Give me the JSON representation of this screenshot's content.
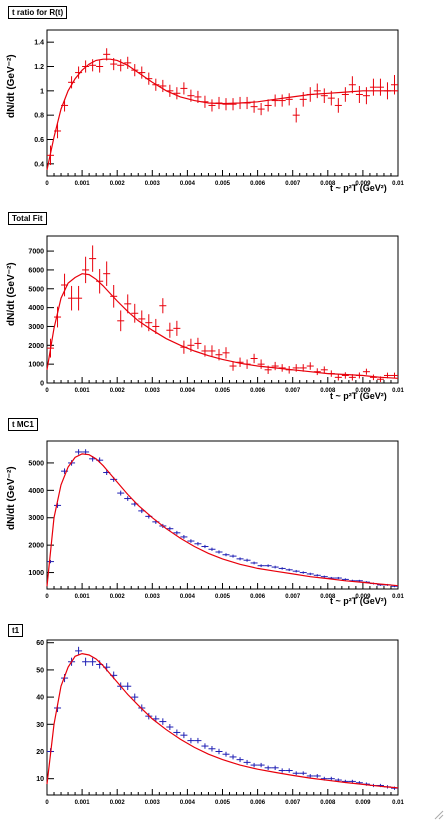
{
  "chart_data": [
    {
      "type": "scatter",
      "title": "t ratio for R(t)",
      "ylabel": "dN/dt (GeV⁻²)",
      "xlabel": "t ~ p²T (GeV²)",
      "xlim": [
        0,
        0.01
      ],
      "ylim": [
        0.3,
        1.5
      ],
      "xticks": [
        "0",
        "0.001",
        "0.002",
        "0.003",
        "0.004",
        "0.005",
        "0.006",
        "0.007",
        "0.008",
        "0.009",
        "0.01"
      ],
      "yticks": [
        "0.4",
        "0.6",
        "0.8",
        "1",
        "1.2",
        "1.4"
      ],
      "ytick_values": [
        0.4,
        0.6,
        0.8,
        1.0,
        1.2,
        1.4
      ],
      "series": [
        {
          "kind": "points",
          "color": "#e8000b",
          "x": [
            0.0001,
            0.0003,
            0.0005,
            0.0007,
            0.0009,
            0.0011,
            0.0013,
            0.0015,
            0.0017,
            0.0019,
            0.0021,
            0.0023,
            0.0025,
            0.0027,
            0.0029,
            0.0031,
            0.0033,
            0.0035,
            0.0037,
            0.0039,
            0.0041,
            0.0043,
            0.0045,
            0.0047,
            0.0049,
            0.0051,
            0.0053,
            0.0055,
            0.0057,
            0.0059,
            0.0061,
            0.0063,
            0.0065,
            0.0067,
            0.0069,
            0.0071,
            0.0073,
            0.0075,
            0.0077,
            0.0079,
            0.0081,
            0.0083,
            0.0085,
            0.0087,
            0.0089,
            0.0091,
            0.0093,
            0.0095,
            0.0097,
            0.0099
          ],
          "y": [
            0.47,
            0.67,
            0.88,
            1.07,
            1.15,
            1.2,
            1.21,
            1.2,
            1.3,
            1.22,
            1.21,
            1.23,
            1.17,
            1.15,
            1.1,
            1.05,
            1.04,
            1.0,
            0.98,
            1.02,
            0.96,
            0.95,
            0.91,
            0.88,
            0.9,
            0.89,
            0.89,
            0.9,
            0.9,
            0.87,
            0.85,
            0.88,
            0.92,
            0.92,
            0.93,
            0.8,
            0.93,
            0.97,
            1.0,
            0.96,
            0.94,
            0.88,
            0.97,
            1.05,
            0.97,
            0.96,
            1.03,
            1.03,
            1.0,
            1.05
          ],
          "yerr": [
            0.08,
            0.06,
            0.05,
            0.05,
            0.05,
            0.05,
            0.05,
            0.05,
            0.05,
            0.05,
            0.05,
            0.05,
            0.05,
            0.05,
            0.05,
            0.05,
            0.05,
            0.05,
            0.05,
            0.05,
            0.05,
            0.05,
            0.05,
            0.05,
            0.05,
            0.05,
            0.05,
            0.05,
            0.05,
            0.05,
            0.05,
            0.05,
            0.05,
            0.05,
            0.05,
            0.06,
            0.06,
            0.06,
            0.06,
            0.06,
            0.06,
            0.06,
            0.06,
            0.07,
            0.07,
            0.07,
            0.07,
            0.07,
            0.07,
            0.08
          ]
        },
        {
          "kind": "curve",
          "color": "#e8000b",
          "x": [
            0,
            0.0002,
            0.0004,
            0.0006,
            0.0008,
            0.001,
            0.0012,
            0.0014,
            0.0016,
            0.0018,
            0.002,
            0.0023,
            0.0026,
            0.003,
            0.0034,
            0.0038,
            0.0042,
            0.0046,
            0.005,
            0.0055,
            0.006,
            0.0065,
            0.007,
            0.0075,
            0.008,
            0.0085,
            0.009,
            0.0095,
            0.01
          ],
          "y": [
            0.35,
            0.62,
            0.85,
            1.0,
            1.1,
            1.17,
            1.22,
            1.25,
            1.26,
            1.26,
            1.25,
            1.21,
            1.15,
            1.07,
            1.0,
            0.95,
            0.92,
            0.9,
            0.895,
            0.9,
            0.91,
            0.93,
            0.95,
            0.97,
            0.98,
            0.99,
            1.0,
            1.0,
            1.0
          ]
        }
      ]
    },
    {
      "type": "scatter",
      "title": "Total Fit",
      "ylabel": "dN/dt (GeV⁻²)",
      "xlabel": "t ~ p²T (GeV²)",
      "xlim": [
        0,
        0.01
      ],
      "ylim": [
        0,
        7800
      ],
      "xticks": [
        "0",
        "0.001",
        "0.002",
        "0.003",
        "0.004",
        "0.005",
        "0.006",
        "0.007",
        "0.008",
        "0.009",
        "0.01"
      ],
      "yticks": [
        "0",
        "1000",
        "2000",
        "3000",
        "4000",
        "5000",
        "6000",
        "7000"
      ],
      "ytick_values": [
        0,
        1000,
        2000,
        3000,
        4000,
        5000,
        6000,
        7000
      ],
      "series": [
        {
          "kind": "points",
          "color": "#e8000b",
          "x": [
            0.0001,
            0.0003,
            0.0005,
            0.0007,
            0.0009,
            0.0011,
            0.0013,
            0.0015,
            0.0017,
            0.0019,
            0.0021,
            0.0023,
            0.0025,
            0.0027,
            0.0029,
            0.0031,
            0.0033,
            0.0035,
            0.0037,
            0.0039,
            0.0041,
            0.0043,
            0.0045,
            0.0047,
            0.0049,
            0.0051,
            0.0053,
            0.0055,
            0.0057,
            0.0059,
            0.0061,
            0.0063,
            0.0065,
            0.0067,
            0.0069,
            0.0071,
            0.0073,
            0.0075,
            0.0077,
            0.0079,
            0.0081,
            0.0083,
            0.0085,
            0.0087,
            0.0089,
            0.0091,
            0.0093,
            0.0095,
            0.0097,
            0.0099
          ],
          "y": [
            1850,
            3500,
            5200,
            4500,
            4500,
            6000,
            6600,
            5400,
            5800,
            4600,
            3300,
            4200,
            3700,
            3400,
            3200,
            3000,
            4100,
            2800,
            2900,
            1900,
            2000,
            2100,
            1700,
            1700,
            1500,
            1600,
            900,
            1100,
            1000,
            1300,
            1000,
            700,
            900,
            800,
            700,
            800,
            800,
            900,
            600,
            700,
            500,
            300,
            400,
            300,
            400,
            600,
            300,
            200,
            400,
            400
          ],
          "yerr": [
            500,
            550,
            600,
            650,
            650,
            700,
            700,
            650,
            650,
            600,
            550,
            500,
            500,
            450,
            450,
            400,
            400,
            400,
            400,
            350,
            350,
            300,
            300,
            300,
            300,
            300,
            250,
            250,
            250,
            250,
            250,
            220,
            220,
            200,
            200,
            200,
            200,
            200,
            180,
            180,
            170,
            170,
            170,
            170,
            160,
            160,
            150,
            150,
            150,
            150
          ]
        },
        {
          "kind": "curve",
          "color": "#e8000b",
          "x": [
            0,
            0.0002,
            0.0004,
            0.0006,
            0.0008,
            0.001,
            0.0012,
            0.0014,
            0.0016,
            0.0018,
            0.002,
            0.0023,
            0.0026,
            0.003,
            0.0034,
            0.0038,
            0.0042,
            0.0046,
            0.005,
            0.0055,
            0.006,
            0.0065,
            0.007,
            0.0075,
            0.008,
            0.0085,
            0.009,
            0.0095,
            0.01
          ],
          "y": [
            700,
            2900,
            4500,
            5300,
            5600,
            5800,
            5750,
            5500,
            5150,
            4750,
            4350,
            3800,
            3300,
            2800,
            2350,
            2000,
            1700,
            1450,
            1250,
            1050,
            900,
            800,
            700,
            600,
            500,
            450,
            400,
            300,
            250
          ]
        }
      ]
    },
    {
      "type": "scatter",
      "title": "t MC1",
      "ylabel": "dN/dt (GeV⁻²)",
      "xlabel": "t ~ p²T (GeV²)",
      "xlim": [
        0,
        0.01
      ],
      "ylim": [
        400,
        5800
      ],
      "xticks": [
        "0",
        "0.001",
        "0.002",
        "0.003",
        "0.004",
        "0.005",
        "0.006",
        "0.007",
        "0.008",
        "0.009",
        "0.01"
      ],
      "yticks": [
        "1000",
        "2000",
        "3000",
        "4000",
        "5000"
      ],
      "ytick_values": [
        1000,
        2000,
        3000,
        4000,
        5000
      ],
      "series": [
        {
          "kind": "points",
          "color": "#1f1fb4",
          "x": [
            0.0001,
            0.0003,
            0.0005,
            0.0007,
            0.0009,
            0.0011,
            0.0013,
            0.0015,
            0.0017,
            0.0019,
            0.0021,
            0.0023,
            0.0025,
            0.0027,
            0.0029,
            0.0031,
            0.0033,
            0.0035,
            0.0037,
            0.0039,
            0.0041,
            0.0043,
            0.0045,
            0.0047,
            0.0049,
            0.0051,
            0.0053,
            0.0055,
            0.0057,
            0.0059,
            0.0061,
            0.0063,
            0.0065,
            0.0067,
            0.0069,
            0.0071,
            0.0073,
            0.0075,
            0.0077,
            0.0079,
            0.0081,
            0.0083,
            0.0085,
            0.0087,
            0.0089,
            0.0091,
            0.0093,
            0.0095,
            0.0097,
            0.0099
          ],
          "y": [
            1400,
            3450,
            4700,
            5000,
            5400,
            5400,
            5150,
            5100,
            4650,
            4400,
            3900,
            3700,
            3500,
            3250,
            3050,
            2850,
            2700,
            2600,
            2450,
            2300,
            2150,
            2050,
            1950,
            1850,
            1750,
            1650,
            1600,
            1500,
            1450,
            1350,
            1250,
            1250,
            1200,
            1150,
            1100,
            1050,
            1000,
            950,
            900,
            850,
            800,
            800,
            750,
            700,
            700,
            650,
            600,
            550,
            550,
            500
          ],
          "yerr": [
            60,
            90,
            100,
            100,
            100,
            100,
            100,
            100,
            90,
            90,
            90,
            85,
            85,
            80,
            80,
            75,
            75,
            70,
            70,
            70,
            65,
            65,
            60,
            60,
            60,
            55,
            55,
            55,
            55,
            50,
            50,
            50,
            50,
            45,
            45,
            45,
            45,
            45,
            40,
            40,
            40,
            40,
            40,
            40,
            35,
            35,
            35,
            35,
            35,
            35
          ]
        },
        {
          "kind": "curve",
          "color": "#e8000b",
          "x": [
            0,
            0.0002,
            0.0004,
            0.0006,
            0.0008,
            0.001,
            0.0012,
            0.0014,
            0.0016,
            0.0018,
            0.002,
            0.0023,
            0.0026,
            0.003,
            0.0034,
            0.0038,
            0.0042,
            0.0046,
            0.005,
            0.0055,
            0.006,
            0.0065,
            0.007,
            0.0075,
            0.008,
            0.0085,
            0.009,
            0.0095,
            0.01
          ],
          "y": [
            500,
            3000,
            4200,
            4850,
            5200,
            5330,
            5300,
            5150,
            4900,
            4600,
            4300,
            3850,
            3450,
            3000,
            2600,
            2250,
            1950,
            1700,
            1500,
            1300,
            1150,
            1050,
            950,
            850,
            780,
            700,
            640,
            580,
            520
          ]
        }
      ]
    },
    {
      "type": "scatter",
      "title": "t1",
      "ylabel": "",
      "xlabel": "",
      "xlim": [
        0,
        0.01
      ],
      "ylim": [
        4,
        61
      ],
      "xticks": [
        "0",
        "0.001",
        "0.002",
        "0.003",
        "0.004",
        "0.005",
        "0.006",
        "0.007",
        "0.008",
        "0.009",
        "0.01"
      ],
      "yticks": [
        "10",
        "20",
        "30",
        "40",
        "50",
        "60"
      ],
      "ytick_values": [
        10,
        20,
        30,
        40,
        50,
        60
      ],
      "series": [
        {
          "kind": "points",
          "color": "#1f1fb4",
          "x": [
            0.0001,
            0.0003,
            0.0005,
            0.0007,
            0.0009,
            0.0011,
            0.0013,
            0.0015,
            0.0017,
            0.0019,
            0.0021,
            0.0023,
            0.0025,
            0.0027,
            0.0029,
            0.0031,
            0.0033,
            0.0035,
            0.0037,
            0.0039,
            0.0041,
            0.0043,
            0.0045,
            0.0047,
            0.0049,
            0.0051,
            0.0053,
            0.0055,
            0.0057,
            0.0059,
            0.0061,
            0.0063,
            0.0065,
            0.0067,
            0.0069,
            0.0071,
            0.0073,
            0.0075,
            0.0077,
            0.0079,
            0.0081,
            0.0083,
            0.0085,
            0.0087,
            0.0089,
            0.0091,
            0.0093,
            0.0095,
            0.0097,
            0.0099
          ],
          "y": [
            20,
            36,
            47,
            53,
            57,
            53,
            53,
            52,
            51,
            48,
            44,
            44,
            40,
            36,
            33,
            32,
            31,
            29,
            27,
            26,
            24,
            24,
            22,
            21,
            20,
            19,
            18,
            17,
            16,
            15,
            15,
            14,
            14,
            13,
            13,
            12,
            12,
            11,
            11,
            10,
            10,
            9.5,
            9,
            9,
            8.5,
            8,
            7.5,
            7.5,
            7,
            6.5
          ],
          "yerr": [
            1.2,
            1.5,
            1.5,
            1.5,
            1.5,
            1.5,
            1.5,
            1.5,
            1.5,
            1.4,
            1.4,
            1.4,
            1.3,
            1.3,
            1.2,
            1.2,
            1.2,
            1.1,
            1.1,
            1.1,
            1.0,
            1.0,
            1.0,
            1.0,
            1.0,
            0.9,
            0.9,
            0.9,
            0.9,
            0.8,
            0.8,
            0.8,
            0.8,
            0.8,
            0.8,
            0.7,
            0.7,
            0.7,
            0.7,
            0.7,
            0.7,
            0.6,
            0.6,
            0.6,
            0.6,
            0.6,
            0.6,
            0.6,
            0.6,
            0.6
          ]
        },
        {
          "kind": "curve",
          "color": "#e8000b",
          "x": [
            0,
            0.0002,
            0.0004,
            0.0006,
            0.0008,
            0.001,
            0.0012,
            0.0014,
            0.0016,
            0.0018,
            0.002,
            0.0023,
            0.0026,
            0.003,
            0.0034,
            0.0038,
            0.0042,
            0.0046,
            0.005,
            0.0055,
            0.006,
            0.0065,
            0.007,
            0.0075,
            0.008,
            0.0085,
            0.009,
            0.0095,
            0.01
          ],
          "y": [
            8,
            30,
            44,
            51,
            55,
            56,
            55.5,
            54,
            51.5,
            48.5,
            45.5,
            41,
            37,
            32,
            28,
            24.5,
            21.5,
            19,
            17,
            15,
            13.5,
            12.3,
            11.2,
            10.2,
            9.4,
            8.6,
            7.9,
            7.2,
            6.6
          ]
        }
      ]
    }
  ]
}
